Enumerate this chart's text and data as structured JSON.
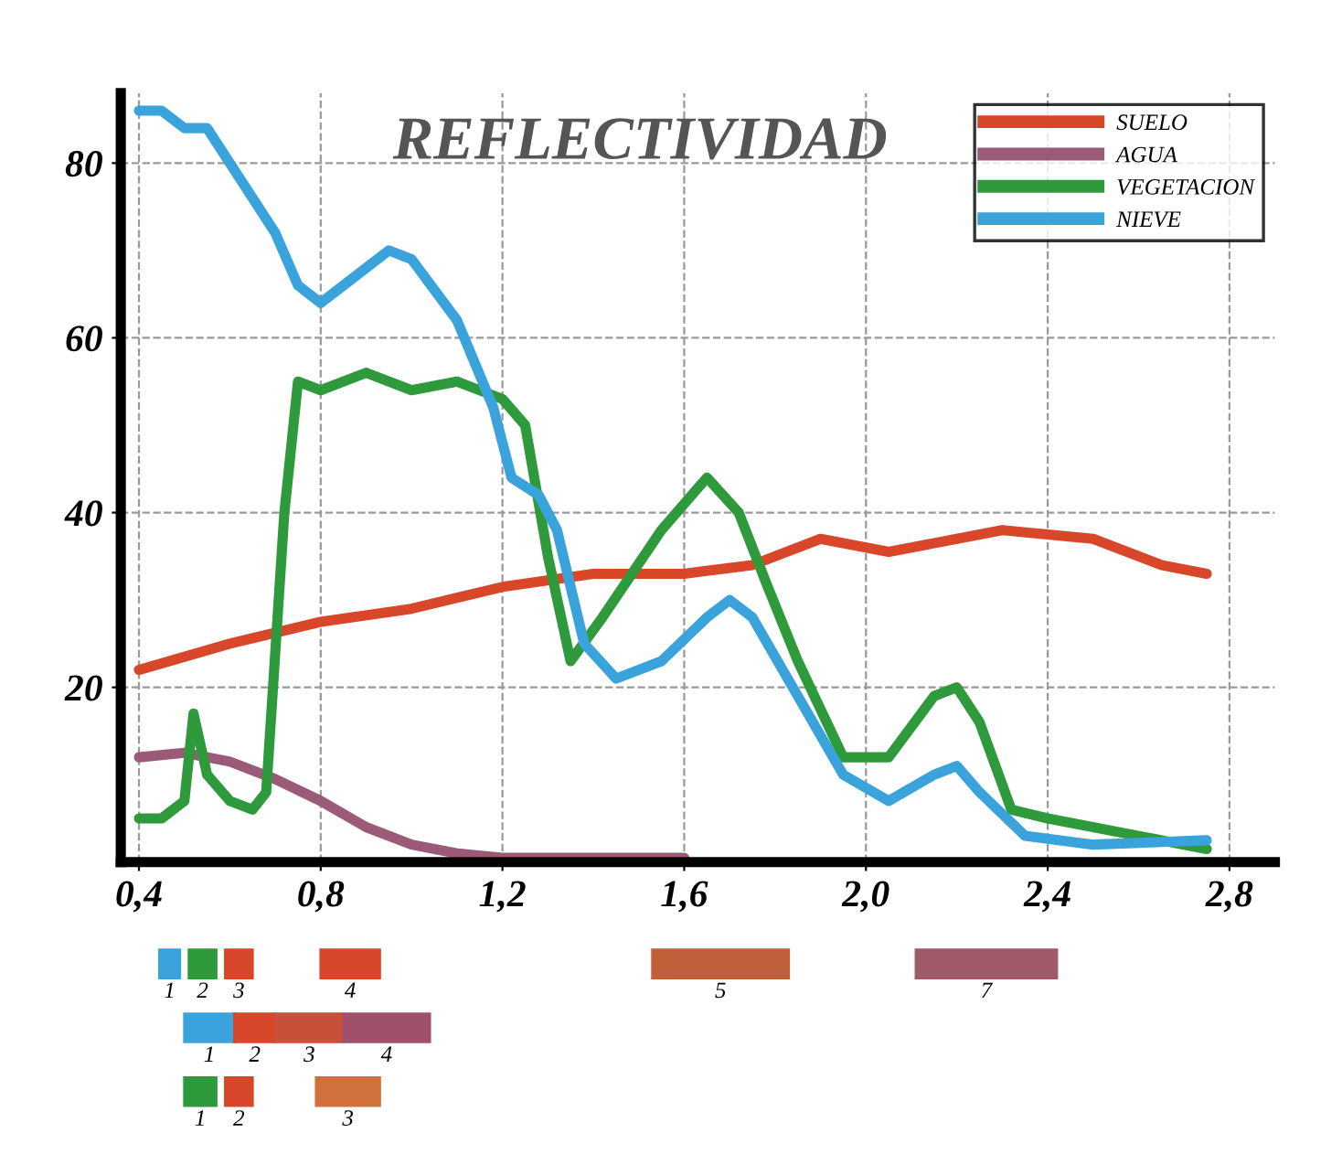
{
  "chart_data": {
    "type": "line",
    "title": "REFLECTIVIDAD",
    "xlim": [
      0.36,
      2.9
    ],
    "ylim": [
      0,
      88
    ],
    "xticks": [
      {
        "value": 0.4,
        "label": "0,4"
      },
      {
        "value": 0.8,
        "label": "0,8"
      },
      {
        "value": 1.2,
        "label": "1,2"
      },
      {
        "value": 1.6,
        "label": "1,6"
      },
      {
        "value": 2.0,
        "label": "2,0"
      },
      {
        "value": 2.4,
        "label": "2,4"
      },
      {
        "value": 2.8,
        "label": "2,8"
      }
    ],
    "yticks": [
      20,
      40,
      60,
      80
    ],
    "grid": true,
    "legend": "top right",
    "marker": "none",
    "line_style": "solid",
    "annotations": [
      "1",
      "2",
      "3",
      "4",
      "5",
      "7",
      "1",
      "2",
      "3",
      "4",
      "1",
      "2",
      "3"
    ],
    "series": [
      {
        "name": "SUELO",
        "color": "#d9472b",
        "x": [
          0.4,
          0.6,
          0.8,
          1.0,
          1.2,
          1.4,
          1.6,
          1.75,
          1.9,
          2.05,
          2.2,
          2.3,
          2.5,
          2.65,
          2.75
        ],
        "values": [
          22,
          25,
          27.5,
          29,
          31.5,
          33,
          33,
          34,
          37,
          35.5,
          37,
          38,
          37,
          34,
          33
        ]
      },
      {
        "name": "AGUA",
        "color": "#9a5a78",
        "x": [
          0.4,
          0.5,
          0.6,
          0.7,
          0.8,
          0.9,
          1.0,
          1.1,
          1.2,
          1.4,
          1.6
        ],
        "values": [
          12,
          12.5,
          11.5,
          9.5,
          7,
          4,
          2,
          1,
          0.5,
          0.5,
          0.5
        ]
      },
      {
        "name": "VEGETACION",
        "color": "#2e9a3c",
        "x": [
          0.4,
          0.45,
          0.5,
          0.52,
          0.55,
          0.6,
          0.65,
          0.68,
          0.72,
          0.75,
          0.8,
          0.9,
          1.0,
          1.1,
          1.2,
          1.25,
          1.3,
          1.35,
          1.42,
          1.55,
          1.65,
          1.72,
          1.78,
          1.85,
          1.95,
          2.05,
          2.15,
          2.2,
          2.25,
          2.32,
          2.4,
          2.6,
          2.75
        ],
        "values": [
          5,
          5,
          7,
          17,
          10,
          7,
          6,
          8,
          40,
          55,
          54,
          56,
          54,
          55,
          53,
          50,
          35,
          23,
          28,
          38,
          44,
          40,
          32,
          23,
          12,
          12,
          19,
          20,
          16,
          6,
          5,
          3,
          1.5
        ]
      },
      {
        "name": "NIEVE",
        "color": "#3ba3dc",
        "x": [
          0.4,
          0.45,
          0.5,
          0.55,
          0.6,
          0.7,
          0.75,
          0.8,
          0.9,
          0.95,
          1.0,
          1.1,
          1.18,
          1.22,
          1.28,
          1.32,
          1.38,
          1.45,
          1.55,
          1.65,
          1.7,
          1.75,
          1.85,
          1.95,
          2.05,
          2.15,
          2.2,
          2.25,
          2.35,
          2.5,
          2.75
        ],
        "values": [
          86,
          86,
          84,
          84,
          80,
          72,
          66,
          64,
          68,
          70,
          69,
          62,
          52,
          44,
          42,
          38,
          25,
          21,
          23,
          28,
          30,
          28,
          19,
          10,
          7,
          10,
          11,
          8,
          3,
          2,
          2.5
        ]
      }
    ]
  }
}
